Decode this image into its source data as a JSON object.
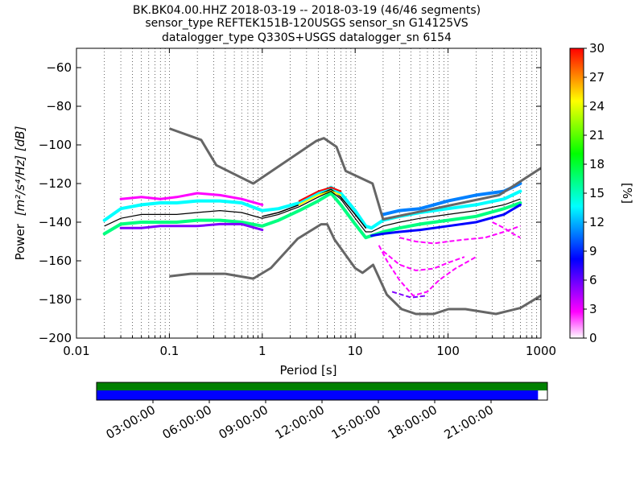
{
  "title_lines": [
    "BK.BK04.00.HHZ   2018-03-19 -- 2018-03-19  (46/46 segments)",
    "sensor_type REFTEK151B-120USGS sensor_sn G14125VS",
    "datalogger_type Q330S+USGS datalogger_sn 6154"
  ],
  "chart_data": [
    {
      "type": "heatmap",
      "xlabel": "Period [s]",
      "ylabel_prefix": "Power",
      "ylabel_units": "[m²/s⁴/Hz] [dB]",
      "x_scale": "log",
      "xlim": [
        0.01,
        1000
      ],
      "ylim": [
        -200,
        -50
      ],
      "x_ticks": [
        0.01,
        0.1,
        1,
        10,
        100,
        1000
      ],
      "x_tick_labels": [
        "0.01",
        "0.1",
        "1",
        "10",
        "100",
        "1000"
      ],
      "y_ticks": [
        -200,
        -180,
        -160,
        -140,
        -120,
        -100,
        -80,
        -60
      ],
      "y_tick_labels": [
        "−200",
        "−180",
        "−160",
        "−140",
        "−120",
        "−100",
        "−80",
        "−60"
      ],
      "grid": "dotted-vertical",
      "colorbar": {
        "label": "[%]",
        "range": [
          0,
          30
        ],
        "ticks": [
          0,
          3,
          6,
          9,
          12,
          15,
          18,
          21,
          24,
          27,
          30
        ],
        "tick_labels": [
          "0",
          "3",
          "6",
          "9",
          "12",
          "15",
          "18",
          "21",
          "24",
          "27",
          "30"
        ],
        "colors": [
          "#ffffff",
          "#ff00ff",
          "#8000ff",
          "#0000ff",
          "#0080ff",
          "#00ffff",
          "#00ff80",
          "#00ff00",
          "#80ff00",
          "#ffff00",
          "#ff8000",
          "#ff0000"
        ]
      },
      "high_noise_model": {
        "name": "NHNM",
        "color": "#666666",
        "x": [
          0.1,
          0.22,
          0.32,
          0.8,
          3.8,
          4.6,
          6.3,
          7.9,
          15.4,
          20,
          354.8,
          1000
        ],
        "y": [
          -91.5,
          -97.4,
          -110.5,
          -120,
          -98,
          -96.5,
          -101,
          -113.5,
          -120,
          -138.5,
          -126,
          -112
        ]
      },
      "low_noise_model": {
        "name": "NLNM",
        "color": "#666666",
        "x": [
          0.1,
          0.17,
          0.4,
          0.8,
          1.24,
          2.4,
          4.3,
          5,
          6,
          10,
          12,
          15.6,
          21.9,
          31.6,
          45,
          70,
          101,
          154,
          328,
          600,
          1000
        ],
        "y": [
          -168,
          -166.7,
          -166.7,
          -169.2,
          -163.7,
          -148.6,
          -141.1,
          -141.1,
          -149,
          -163.8,
          -166.2,
          -162.1,
          -177.5,
          -185,
          -187.5,
          -187.5,
          -185,
          -185,
          -187.5,
          -184.4,
          -178
        ]
      },
      "mean_psd": {
        "x": [
          0.02,
          0.03,
          0.05,
          0.08,
          0.12,
          0.2,
          0.35,
          0.6,
          1,
          1.5,
          2.5,
          4,
          5.5,
          7,
          10,
          13,
          15,
          20,
          30,
          50,
          100,
          200,
          400,
          600
        ],
        "y": [
          -142,
          -138,
          -136,
          -136,
          -136,
          -135,
          -134,
          -135,
          -138,
          -136,
          -132,
          -127,
          -124,
          -128,
          -138,
          -145,
          -145,
          -142,
          -140,
          -138,
          -136,
          -134,
          -131,
          -128
        ]
      },
      "psd_bands": [
        {
          "x": [
            0.02,
            0.03,
            0.05,
            0.08,
            0.12,
            0.2,
            0.35,
            0.6,
            1,
            1.5,
            2.5,
            4,
            5.5,
            7,
            10,
            13,
            15,
            20,
            30,
            50,
            100,
            200,
            400,
            600
          ],
          "y": [
            -146,
            -141,
            -140,
            -140,
            -140,
            -139,
            -139,
            -140,
            -142,
            -139,
            -134,
            -129,
            -125,
            -131,
            -141,
            -148,
            -147,
            -145,
            -143,
            -141,
            -139,
            -137,
            -133,
            -130
          ],
          "color": "#00ff80",
          "width": 4
        },
        {
          "x": [
            0.02,
            0.03,
            0.05,
            0.08,
            0.12,
            0.2,
            0.35,
            0.6,
            1,
            1.5,
            2.5,
            4,
            5.5,
            7,
            10,
            13,
            15,
            20,
            30,
            50,
            100,
            200,
            400,
            600
          ],
          "y": [
            -139,
            -133,
            -131,
            -130,
            -130,
            -129,
            -129,
            -130,
            -134,
            -133,
            -130,
            -125,
            -122,
            -125,
            -134,
            -142,
            -143,
            -139,
            -137,
            -135,
            -133,
            -131,
            -128,
            -124
          ],
          "color": "#00ffff",
          "width": 4
        },
        {
          "x": [
            0.03,
            0.05,
            0.08,
            0.12,
            0.2,
            0.35,
            0.6,
            1
          ],
          "y": [
            -128,
            -127,
            -128,
            -127,
            -125,
            -126,
            -128,
            -131
          ],
          "color": "#ff00ff",
          "width": 3
        },
        {
          "x": [
            0.03,
            0.05,
            0.08,
            0.12,
            0.2,
            0.35,
            0.6,
            1
          ],
          "y": [
            -143,
            -143,
            -142,
            -142,
            -142,
            -141,
            -141,
            -144
          ],
          "color": "#8000ff",
          "width": 3
        },
        {
          "x": [
            15,
            20,
            30,
            50,
            100,
            200,
            400,
            600
          ],
          "y": [
            -147,
            -146,
            -145,
            -144,
            -142,
            -140,
            -136,
            -131
          ],
          "color": "#0000ff",
          "width": 3
        },
        {
          "x": [
            20,
            30,
            50,
            100,
            200,
            400,
            600
          ],
          "y": [
            -136,
            -134,
            -133,
            -129,
            -126,
            -124,
            -120
          ],
          "color": "#0080ff",
          "width": 4
        },
        {
          "x": [
            1,
            1.5,
            2.5,
            4,
            5.5,
            7,
            10,
            13
          ],
          "y": [
            -137,
            -135,
            -131,
            -126,
            -123,
            -127,
            -136,
            -143
          ],
          "color": "#000000",
          "width": 1.5
        },
        {
          "x": [
            2.5,
            4,
            5.5,
            7
          ],
          "y": [
            -129,
            -124,
            -122,
            -124
          ],
          "color": "#ff0000",
          "width": 2
        },
        {
          "x": [
            2.5,
            4,
            5.5,
            7
          ],
          "y": [
            -131,
            -126,
            -124,
            -126
          ],
          "color": "#ffff00",
          "width": 2
        }
      ],
      "outlier_tails": [
        {
          "x": [
            18,
            22,
            30,
            42,
            60,
            80,
            120,
            200
          ],
          "y": [
            -152,
            -160,
            -170,
            -178,
            -176,
            -170,
            -164,
            -158
          ],
          "color": "#ff00ff"
        },
        {
          "x": [
            20,
            30,
            45,
            70,
            100,
            150
          ],
          "y": [
            -155,
            -162,
            -165,
            -164,
            -161,
            -158
          ],
          "color": "#ff00ff"
        },
        {
          "x": [
            30,
            45,
            70,
            100,
            150,
            250,
            400,
            600
          ],
          "y": [
            -148,
            -150,
            -151,
            -150,
            -149,
            -148,
            -145,
            -142
          ],
          "color": "#ff00ff"
        },
        {
          "x": [
            300,
            400,
            500,
            600
          ],
          "y": [
            -140,
            -143,
            -146,
            -148
          ],
          "color": "#ff00ff"
        },
        {
          "x": [
            25,
            40,
            60
          ],
          "y": [
            -176,
            -179,
            -178
          ],
          "color": "#8000ff"
        }
      ]
    },
    {
      "type": "timeline",
      "xlabel": "",
      "tick_labels": [
        "03:00:00",
        "06:00:00",
        "09:00:00",
        "12:00:00",
        "15:00:00",
        "18:00:00",
        "21:00:00"
      ],
      "tick_hours": [
        3,
        6,
        9,
        12,
        15,
        18,
        21
      ],
      "range_hours": [
        0,
        24
      ],
      "data_availability": {
        "start_hour": 0,
        "end_hour": 24,
        "color": "#008000"
      },
      "psd_coverage": {
        "start_hour": 0,
        "end_hour": 23.5,
        "color": "#0000ff"
      }
    }
  ]
}
